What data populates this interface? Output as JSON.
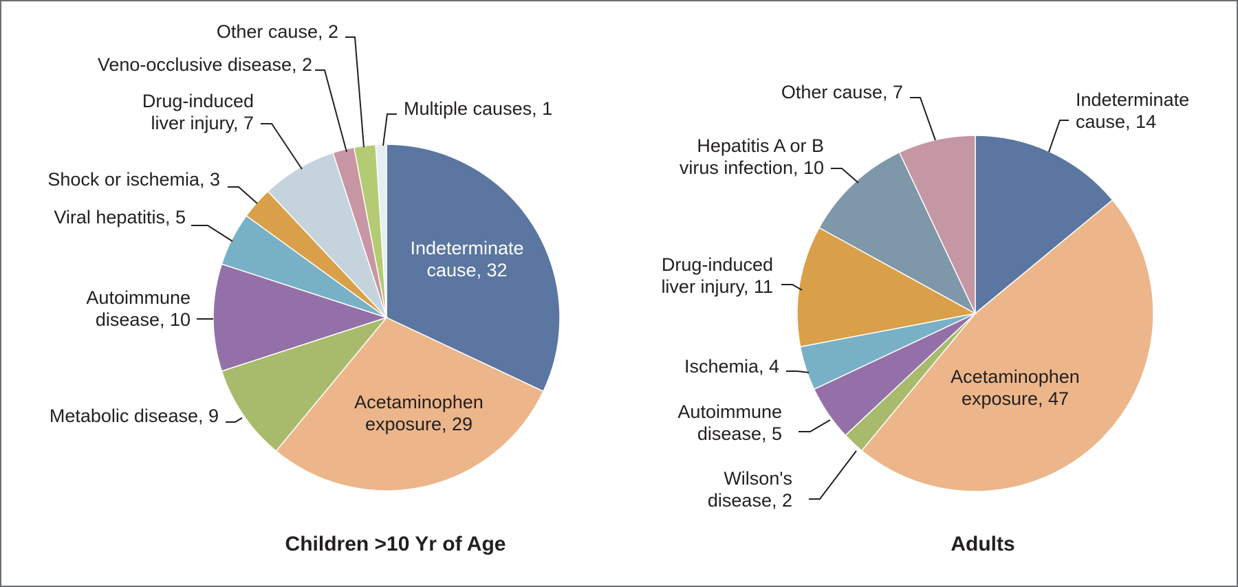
{
  "chart_data": [
    {
      "type": "pie",
      "title": "Children >10 Yr of Age",
      "slices": [
        {
          "label": "Indeterminate\ncause, 32",
          "value": 32,
          "color": "#5a76a1",
          "label_pos": "inside",
          "label_color": "light"
        },
        {
          "label": "Acetaminophen\nexposure, 29",
          "value": 29,
          "color": "#ecb68a",
          "label_pos": "inside",
          "label_color": "dark"
        },
        {
          "label": "Metabolic disease, 9",
          "value": 9,
          "color": "#a8bb6c",
          "label_pos": "outside"
        },
        {
          "label": "Autoimmune\ndisease, 10",
          "value": 10,
          "color": "#9470a9",
          "label_pos": "outside"
        },
        {
          "label": "Viral hepatitis, 5",
          "value": 5,
          "color": "#78b1c5",
          "label_pos": "outside"
        },
        {
          "label": "Shock or ischemia, 3",
          "value": 3,
          "color": "#d9a049",
          "label_pos": "outside"
        },
        {
          "label": "Drug-induced\nliver injury, 7",
          "value": 7,
          "color": "#c5d3dd",
          "label_pos": "outside"
        },
        {
          "label": "Veno-occlusive disease, 2",
          "value": 2,
          "color": "#c896a3",
          "label_pos": "outside"
        },
        {
          "label": "Other cause, 2",
          "value": 2,
          "color": "#b3cb72",
          "label_pos": "outside"
        },
        {
          "label": "Multiple causes, 1",
          "value": 1,
          "color": "#e6eef2",
          "label_pos": "outside"
        }
      ]
    },
    {
      "type": "pie",
      "title": "Adults",
      "slices": [
        {
          "label": "Indeterminate\ncause, 14",
          "value": 14,
          "color": "#5a76a1",
          "label_pos": "outside"
        },
        {
          "label": "Acetaminophen\nexposure, 47",
          "value": 47,
          "color": "#ecb68a",
          "label_pos": "inside",
          "label_color": "dark"
        },
        {
          "label": "Wilson's\ndisease, 2",
          "value": 2,
          "color": "#a8bb6c",
          "label_pos": "outside"
        },
        {
          "label": "Autoimmune\ndisease, 5",
          "value": 5,
          "color": "#9470a9",
          "label_pos": "outside"
        },
        {
          "label": "Ischemia, 4",
          "value": 4,
          "color": "#78b1c5",
          "label_pos": "outside"
        },
        {
          "label": "Drug-induced\nliver injury, 11",
          "value": 11,
          "color": "#d9a049",
          "label_pos": "outside"
        },
        {
          "label": "Hepatitis A or B\nvirus infection, 10",
          "value": 10,
          "color": "#7e97a9",
          "label_pos": "outside"
        },
        {
          "label": "Other cause, 7",
          "value": 7,
          "color": "#c596a3",
          "label_pos": "outside"
        }
      ]
    }
  ]
}
